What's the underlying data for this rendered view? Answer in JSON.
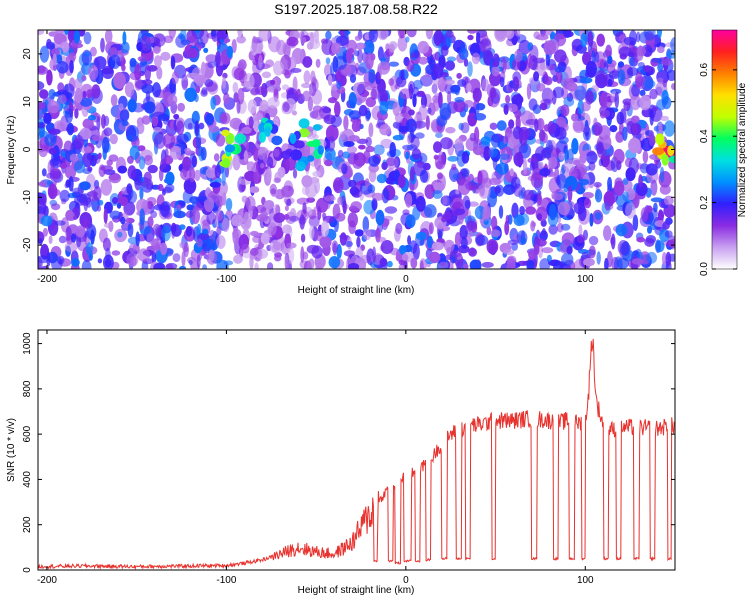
{
  "figure": {
    "title": "S197.2025.187.08.58.R22"
  },
  "chart_data": [
    {
      "type": "heatmap",
      "title": "S197.2025.187.08.58.R22",
      "xlabel": "Height of straight line (km)",
      "ylabel": "Frequency (Hz)",
      "xlim": [
        -205,
        150
      ],
      "ylim": [
        -25,
        25
      ],
      "x_ticks": [
        -200,
        -100,
        0,
        100
      ],
      "y_ticks": [
        -20,
        -10,
        0,
        10,
        20
      ],
      "colorbar": {
        "label": "Normalized spectral amplitude",
        "range": [
          0,
          0.72
        ],
        "ticks": [
          0,
          0.2,
          0.4,
          0.6
        ],
        "tick_labels": [
          "0.0",
          "0.2",
          "0.4",
          "0.6"
        ],
        "colors": [
          "#ffffff",
          "#c8a0f0",
          "#8a2be2",
          "#3020ff",
          "#0090ff",
          "#00e0e0",
          "#00ff60",
          "#c0ff00",
          "#ffe000",
          "#ff8000",
          "#ff2020",
          "#ff00a0"
        ]
      },
      "hot_spots": [
        {
          "x": -97,
          "y": 0,
          "value": 0.5
        },
        {
          "x": -75,
          "y": 3,
          "value": 0.35
        },
        {
          "x": -52,
          "y": 2,
          "value": 0.45
        },
        {
          "x": -62,
          "y": -1,
          "value": 0.3
        },
        {
          "x": 145,
          "y": 1,
          "value": 0.72
        }
      ]
    },
    {
      "type": "line",
      "xlabel": "Height of straight line (km)",
      "ylabel": "SNR (10 * v/v)",
      "xlim": [
        -205,
        150
      ],
      "ylim": [
        0,
        1060
      ],
      "x_ticks": [
        -200,
        -100,
        0,
        100
      ],
      "y_ticks": [
        0,
        200,
        400,
        600,
        800,
        1000
      ],
      "color": "#e8322e",
      "series": [
        {
          "x": [
            -205,
            -180,
            -150,
            -120,
            -100,
            -90,
            -80,
            -70,
            -60,
            -50,
            -40,
            -30,
            -20,
            -15,
            -10,
            -5,
            0,
            5,
            10,
            15,
            20,
            25,
            30,
            35,
            40,
            45,
            50,
            55,
            60,
            65,
            70,
            75,
            80,
            85,
            90,
            95,
            100,
            102,
            104,
            106,
            110,
            115,
            120,
            130,
            140,
            150
          ],
          "y": [
            15,
            18,
            15,
            18,
            20,
            30,
            45,
            70,
            100,
            80,
            70,
            120,
            250,
            300,
            360,
            380,
            420,
            430,
            460,
            500,
            560,
            600,
            620,
            640,
            640,
            650,
            660,
            660,
            660,
            665,
            670,
            665,
            660,
            650,
            660,
            650,
            650,
            800,
            1050,
            750,
            640,
            620,
            630,
            630,
            625,
            640
          ]
        }
      ],
      "dropouts": [
        {
          "from": -18,
          "to": -16,
          "value": 40
        },
        {
          "from": -10,
          "to": -7,
          "value": 40
        },
        {
          "from": -6,
          "to": -3,
          "value": 30
        },
        {
          "from": -1,
          "to": 3,
          "value": 40
        },
        {
          "from": 5,
          "to": 8,
          "value": 40
        },
        {
          "from": 11,
          "to": 14,
          "value": 45
        },
        {
          "from": 20,
          "to": 23,
          "value": 50
        },
        {
          "from": 28,
          "to": 31,
          "value": 50
        },
        {
          "from": 33,
          "to": 36,
          "value": 50
        },
        {
          "from": 48,
          "to": 50,
          "value": 50
        },
        {
          "from": 70,
          "to": 73,
          "value": 50
        },
        {
          "from": 82,
          "to": 85,
          "value": 50
        },
        {
          "from": 91,
          "to": 94,
          "value": 50
        },
        {
          "from": 98,
          "to": 100,
          "value": 50
        },
        {
          "from": 110,
          "to": 113,
          "value": 50
        },
        {
          "from": 117,
          "to": 120,
          "value": 50
        },
        {
          "from": 127,
          "to": 130,
          "value": 50
        },
        {
          "from": 136,
          "to": 139,
          "value": 50
        },
        {
          "from": 146,
          "to": 148,
          "value": 50
        }
      ]
    }
  ]
}
